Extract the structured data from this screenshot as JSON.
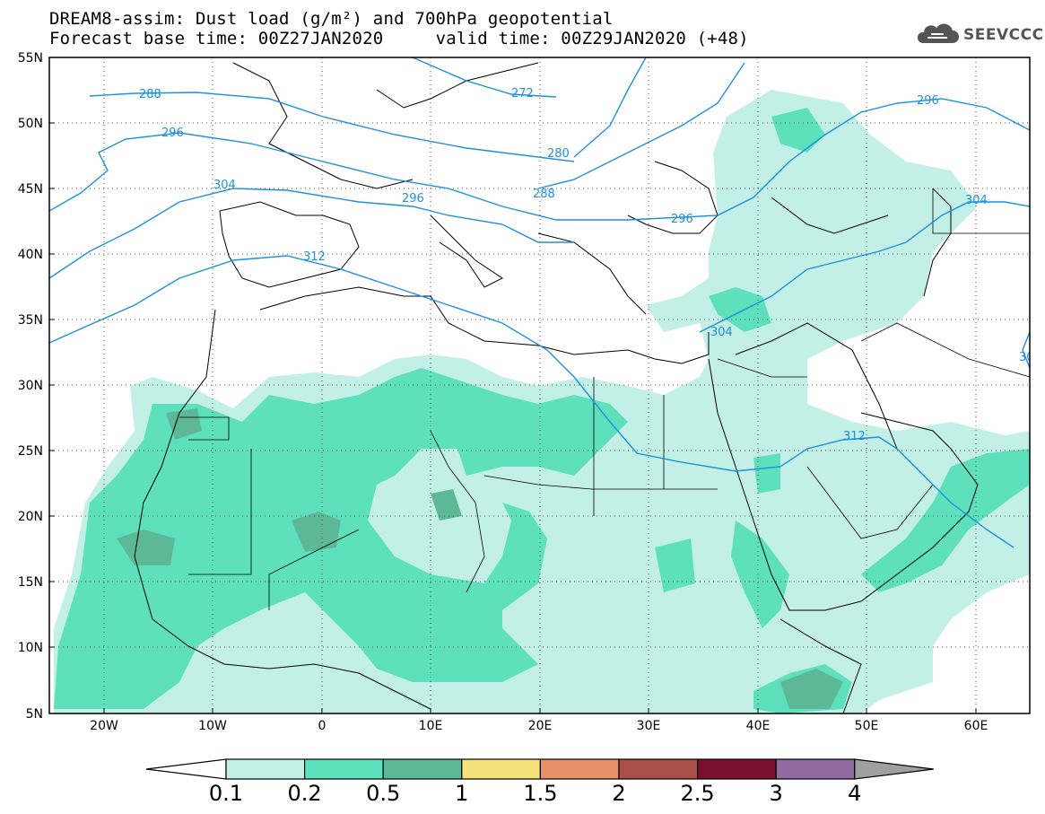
{
  "title": {
    "line1": "DREAM8-assim: Dust load (g/m²) and 700hPa geopotential",
    "line2": "Forecast base time: 00Z27JAN2020     valid time: 00Z29JAN2020 (+48)"
  },
  "logo": {
    "text": "SEEVCCC",
    "icon": "cloud-icon"
  },
  "map": {
    "lon_range": [
      -25,
      65
    ],
    "lat_range": [
      5,
      55
    ],
    "lat_labels": [
      "55N",
      "50N",
      "45N",
      "40N",
      "35N",
      "30N",
      "25N",
      "20N",
      "15N",
      "10N",
      "5N"
    ],
    "lon_labels": [
      "20W",
      "10W",
      "0",
      "10E",
      "20E",
      "30E",
      "40E",
      "50E",
      "60E"
    ],
    "contour_labels": [
      "288",
      "296",
      "304",
      "312",
      "272",
      "280",
      "288",
      "296",
      "304",
      "296",
      "312",
      "304",
      "296",
      "30"
    ],
    "colors": {
      "contour": "#1e90e0",
      "dust_01": "#c2f0e6",
      "dust_02": "#5ee0bd",
      "dust_05": "#5cb896",
      "frame": "#000000"
    }
  },
  "colorbar": {
    "levels": [
      "0.1",
      "0.2",
      "0.5",
      "1",
      "1.5",
      "2",
      "2.5",
      "3",
      "4"
    ],
    "colors": [
      "#ffffff",
      "#c2f0e6",
      "#5ee0bd",
      "#5cb896",
      "#f5e37a",
      "#e8906a",
      "#a85048",
      "#7a0f2e",
      "#8e6aa0",
      "#a0a0a0"
    ]
  }
}
